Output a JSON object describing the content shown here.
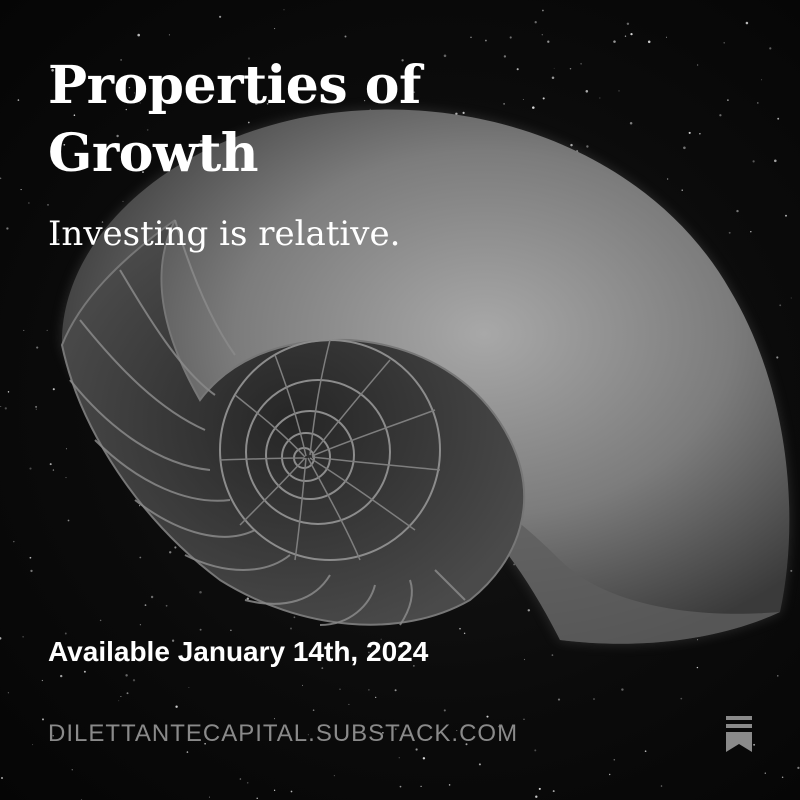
{
  "card": {
    "title": "Properties of Growth",
    "subtitle": "Investing is relative.",
    "availability": "Available January 14th, 2024",
    "publication_url": "DILETTANTECAPITAL.SUBSTACK.COM",
    "bookmark_icon": "substack-bookmark-icon",
    "background_image": "nautilus-shell-on-starfield"
  },
  "colors": {
    "background": "#0a0a0a",
    "text_primary": "#ffffff",
    "text_muted": "#8a8a8a",
    "shell": "#9a9a9a"
  }
}
